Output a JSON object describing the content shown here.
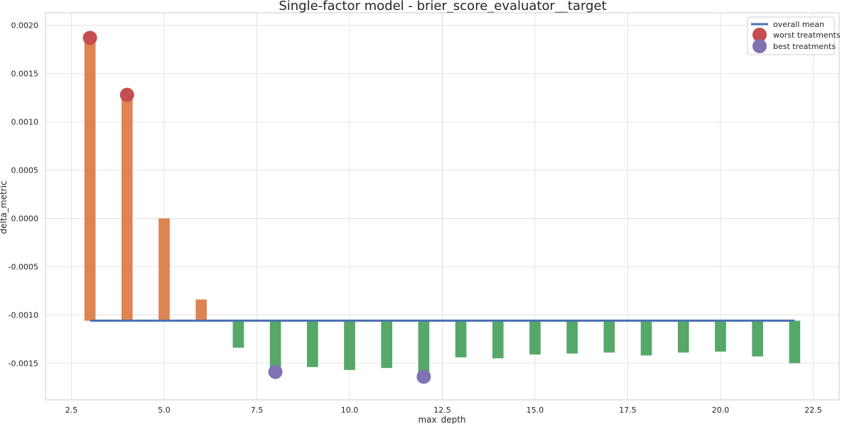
{
  "chart_data": {
    "type": "bar",
    "title": "Single-factor model - brier_score_evaluator__target",
    "xlabel": "max_depth",
    "ylabel": "delta_metric",
    "xlim": [
      1.8,
      23.2
    ],
    "ylim": [
      -0.00188,
      0.00213
    ],
    "xticks": [
      2.5,
      5.0,
      7.5,
      10.0,
      12.5,
      15.0,
      17.5,
      20.0,
      22.5
    ],
    "xtick_labels": [
      "2.5",
      "5.0",
      "7.5",
      "10.0",
      "12.5",
      "15.0",
      "17.5",
      "20.0",
      "22.5"
    ],
    "yticks": [
      -0.0015,
      -0.001,
      -0.0005,
      0.0,
      0.0005,
      0.001,
      0.0015,
      0.002
    ],
    "ytick_labels": [
      "-0.0015",
      "-0.0010",
      "-0.0005",
      "0.0000",
      "0.0005",
      "0.0010",
      "0.0015",
      "0.0020"
    ],
    "grid": true,
    "legend_position": "top-right",
    "overall_mean": -0.00106,
    "bar_width": 0.3,
    "x": [
      3,
      4,
      5,
      6,
      7,
      8,
      9,
      10,
      11,
      12,
      13,
      14,
      15,
      16,
      17,
      18,
      19,
      20,
      21,
      22
    ],
    "values": [
      0.00187,
      0.00128,
      0.0,
      -0.00084,
      -0.00134,
      -0.00159,
      -0.00154,
      -0.00157,
      -0.00155,
      -0.00164,
      -0.00144,
      -0.00145,
      -0.00141,
      -0.0014,
      -0.00139,
      -0.00142,
      -0.00139,
      -0.00138,
      -0.00143,
      -0.0015
    ],
    "series": [
      {
        "name": "overall mean",
        "type": "line",
        "x": [
          3,
          22
        ],
        "values": [
          -0.00106,
          -0.00106
        ]
      },
      {
        "name": "worst treatments",
        "type": "scatter",
        "x": [
          3,
          4
        ],
        "values": [
          0.00187,
          0.00128
        ]
      },
      {
        "name": "best treatments",
        "type": "scatter",
        "x": [
          8,
          12
        ],
        "values": [
          -0.00159,
          -0.00164
        ]
      }
    ],
    "colors": {
      "above_mean": "#dd8452",
      "below_mean": "#55a868",
      "mean_line": "#4c72b0",
      "worst": "#c44e52",
      "best": "#8172b3",
      "grid": "#e5e5e5",
      "frame": "#cccccc"
    }
  }
}
